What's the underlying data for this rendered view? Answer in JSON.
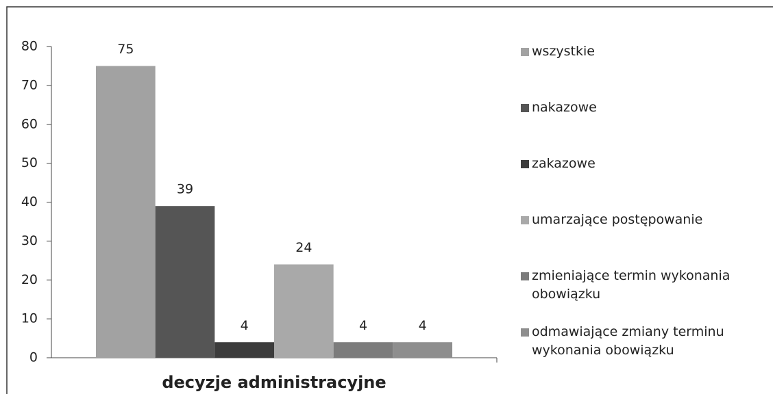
{
  "chart_data": {
    "type": "bar",
    "xlabel": "decyzje administracyjne",
    "categories": [
      "decyzje administracyjne"
    ],
    "series": [
      {
        "name": "wszystkie",
        "color": "#a2a2a2",
        "values": [
          75
        ]
      },
      {
        "name": "nakazowe",
        "color": "#555555",
        "values": [
          39
        ]
      },
      {
        "name": "zakazowe",
        "color": "#3c3c3c",
        "values": [
          4
        ]
      },
      {
        "name": "umarzające postępowanie",
        "color": "#a9a9a9",
        "values": [
          24
        ]
      },
      {
        "name": "zmieniające termin wykonania obowiązku",
        "color": "#7c7c7c",
        "values": [
          4
        ]
      },
      {
        "name": "odmawiające zmiany terminu wykonania obowiązku",
        "color": "#8e8e8e",
        "values": [
          4
        ]
      }
    ],
    "ylim": [
      0,
      80
    ],
    "yticks": [
      0,
      10,
      20,
      30,
      40,
      50,
      60,
      70,
      80
    ],
    "legend": "right"
  }
}
